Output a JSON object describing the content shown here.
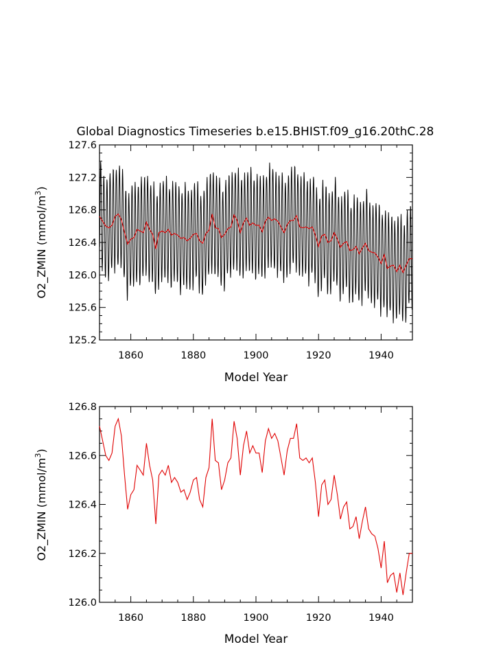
{
  "chart_data": [
    {
      "type": "line",
      "title": "Global Diagnostics Timeseries b.e15.BHIST.f09_g16.20thC.28",
      "xlabel": "Model Year",
      "ylabel_base": "O2_ZMIN (mmol/m",
      "ylabel_sup": "3",
      "ylabel_close": ")",
      "xlim": [
        1850,
        1950
      ],
      "ylim": [
        125.2,
        127.6
      ],
      "xticks": [
        1860,
        1880,
        1900,
        1920,
        1940
      ],
      "xtick_labels": [
        "1860",
        "1880",
        "1900",
        "1920",
        "1940"
      ],
      "yticks": [
        125.2,
        125.6,
        126.0,
        126.4,
        126.8,
        127.2,
        127.6
      ],
      "ytick_labels": [
        "125.2",
        "125.6",
        "126.0",
        "126.4",
        "126.8",
        "127.2",
        "127.6"
      ],
      "series": [
        {
          "name": "monthly",
          "color": "#000000",
          "seasonal_amplitude_approx": 0.62,
          "note": "monthly values oscillate around the annual mean with ~0.6 mmol/m3 seasonal amplitude; peaks ~127.1-127.45, troughs ~125.3-126.0"
        },
        {
          "name": "annual mean",
          "color": "#e00000",
          "ref": "annual"
        }
      ]
    },
    {
      "type": "line",
      "title": "",
      "xlabel": "Model Year",
      "ylabel_base": "O2_ZMIN (mmol/m",
      "ylabel_sup": "3",
      "ylabel_close": ")",
      "xlim": [
        1850,
        1950
      ],
      "ylim": [
        126.0,
        126.8
      ],
      "xticks": [
        1860,
        1880,
        1900,
        1920,
        1940
      ],
      "xtick_labels": [
        "1860",
        "1880",
        "1900",
        "1920",
        "1940"
      ],
      "yticks": [
        126.0,
        126.2,
        126.4,
        126.6,
        126.8
      ],
      "ytick_labels": [
        "126.0",
        "126.2",
        "126.4",
        "126.6",
        "126.8"
      ],
      "series": [
        {
          "name": "annual mean",
          "color": "#e00000",
          "ref": "annual"
        }
      ]
    }
  ],
  "annual": {
    "years": [
      1850,
      1851,
      1852,
      1853,
      1854,
      1855,
      1856,
      1857,
      1858,
      1859,
      1860,
      1861,
      1862,
      1863,
      1864,
      1865,
      1866,
      1867,
      1868,
      1869,
      1870,
      1871,
      1872,
      1873,
      1874,
      1875,
      1876,
      1877,
      1878,
      1879,
      1880,
      1881,
      1882,
      1883,
      1884,
      1885,
      1886,
      1887,
      1888,
      1889,
      1890,
      1891,
      1892,
      1893,
      1894,
      1895,
      1896,
      1897,
      1898,
      1899,
      1900,
      1901,
      1902,
      1903,
      1904,
      1905,
      1906,
      1907,
      1908,
      1909,
      1910,
      1911,
      1912,
      1913,
      1914,
      1915,
      1916,
      1917,
      1918,
      1919,
      1920,
      1921,
      1922,
      1923,
      1924,
      1925,
      1926,
      1927,
      1928,
      1929,
      1930,
      1931,
      1932,
      1933,
      1934,
      1935,
      1936,
      1937,
      1938,
      1939,
      1940,
      1941,
      1942,
      1943,
      1944,
      1945,
      1946,
      1947,
      1948,
      1949,
      1950
    ],
    "values": [
      126.72,
      126.66,
      126.6,
      126.58,
      126.61,
      126.72,
      126.75,
      126.68,
      126.52,
      126.38,
      126.44,
      126.46,
      126.56,
      126.54,
      126.52,
      126.65,
      126.56,
      126.5,
      126.32,
      126.52,
      126.54,
      126.52,
      126.56,
      126.49,
      126.51,
      126.49,
      126.45,
      126.46,
      126.42,
      126.45,
      126.5,
      126.51,
      126.42,
      126.39,
      126.51,
      126.55,
      126.75,
      126.58,
      126.57,
      126.46,
      126.5,
      126.57,
      126.59,
      126.74,
      126.67,
      126.52,
      126.64,
      126.7,
      126.61,
      126.64,
      126.61,
      126.61,
      126.53,
      126.66,
      126.71,
      126.67,
      126.69,
      126.66,
      126.59,
      126.52,
      126.62,
      126.67,
      126.67,
      126.73,
      126.59,
      126.58,
      126.59,
      126.57,
      126.59,
      126.49,
      126.35,
      126.48,
      126.5,
      126.4,
      126.42,
      126.52,
      126.44,
      126.34,
      126.39,
      126.41,
      126.3,
      126.31,
      126.35,
      126.26,
      126.33,
      126.39,
      126.3,
      126.28,
      126.27,
      126.22,
      126.14,
      126.25,
      126.08,
      126.11,
      126.12,
      126.04,
      126.12,
      126.03,
      126.12,
      126.2,
      126.2
    ]
  }
}
